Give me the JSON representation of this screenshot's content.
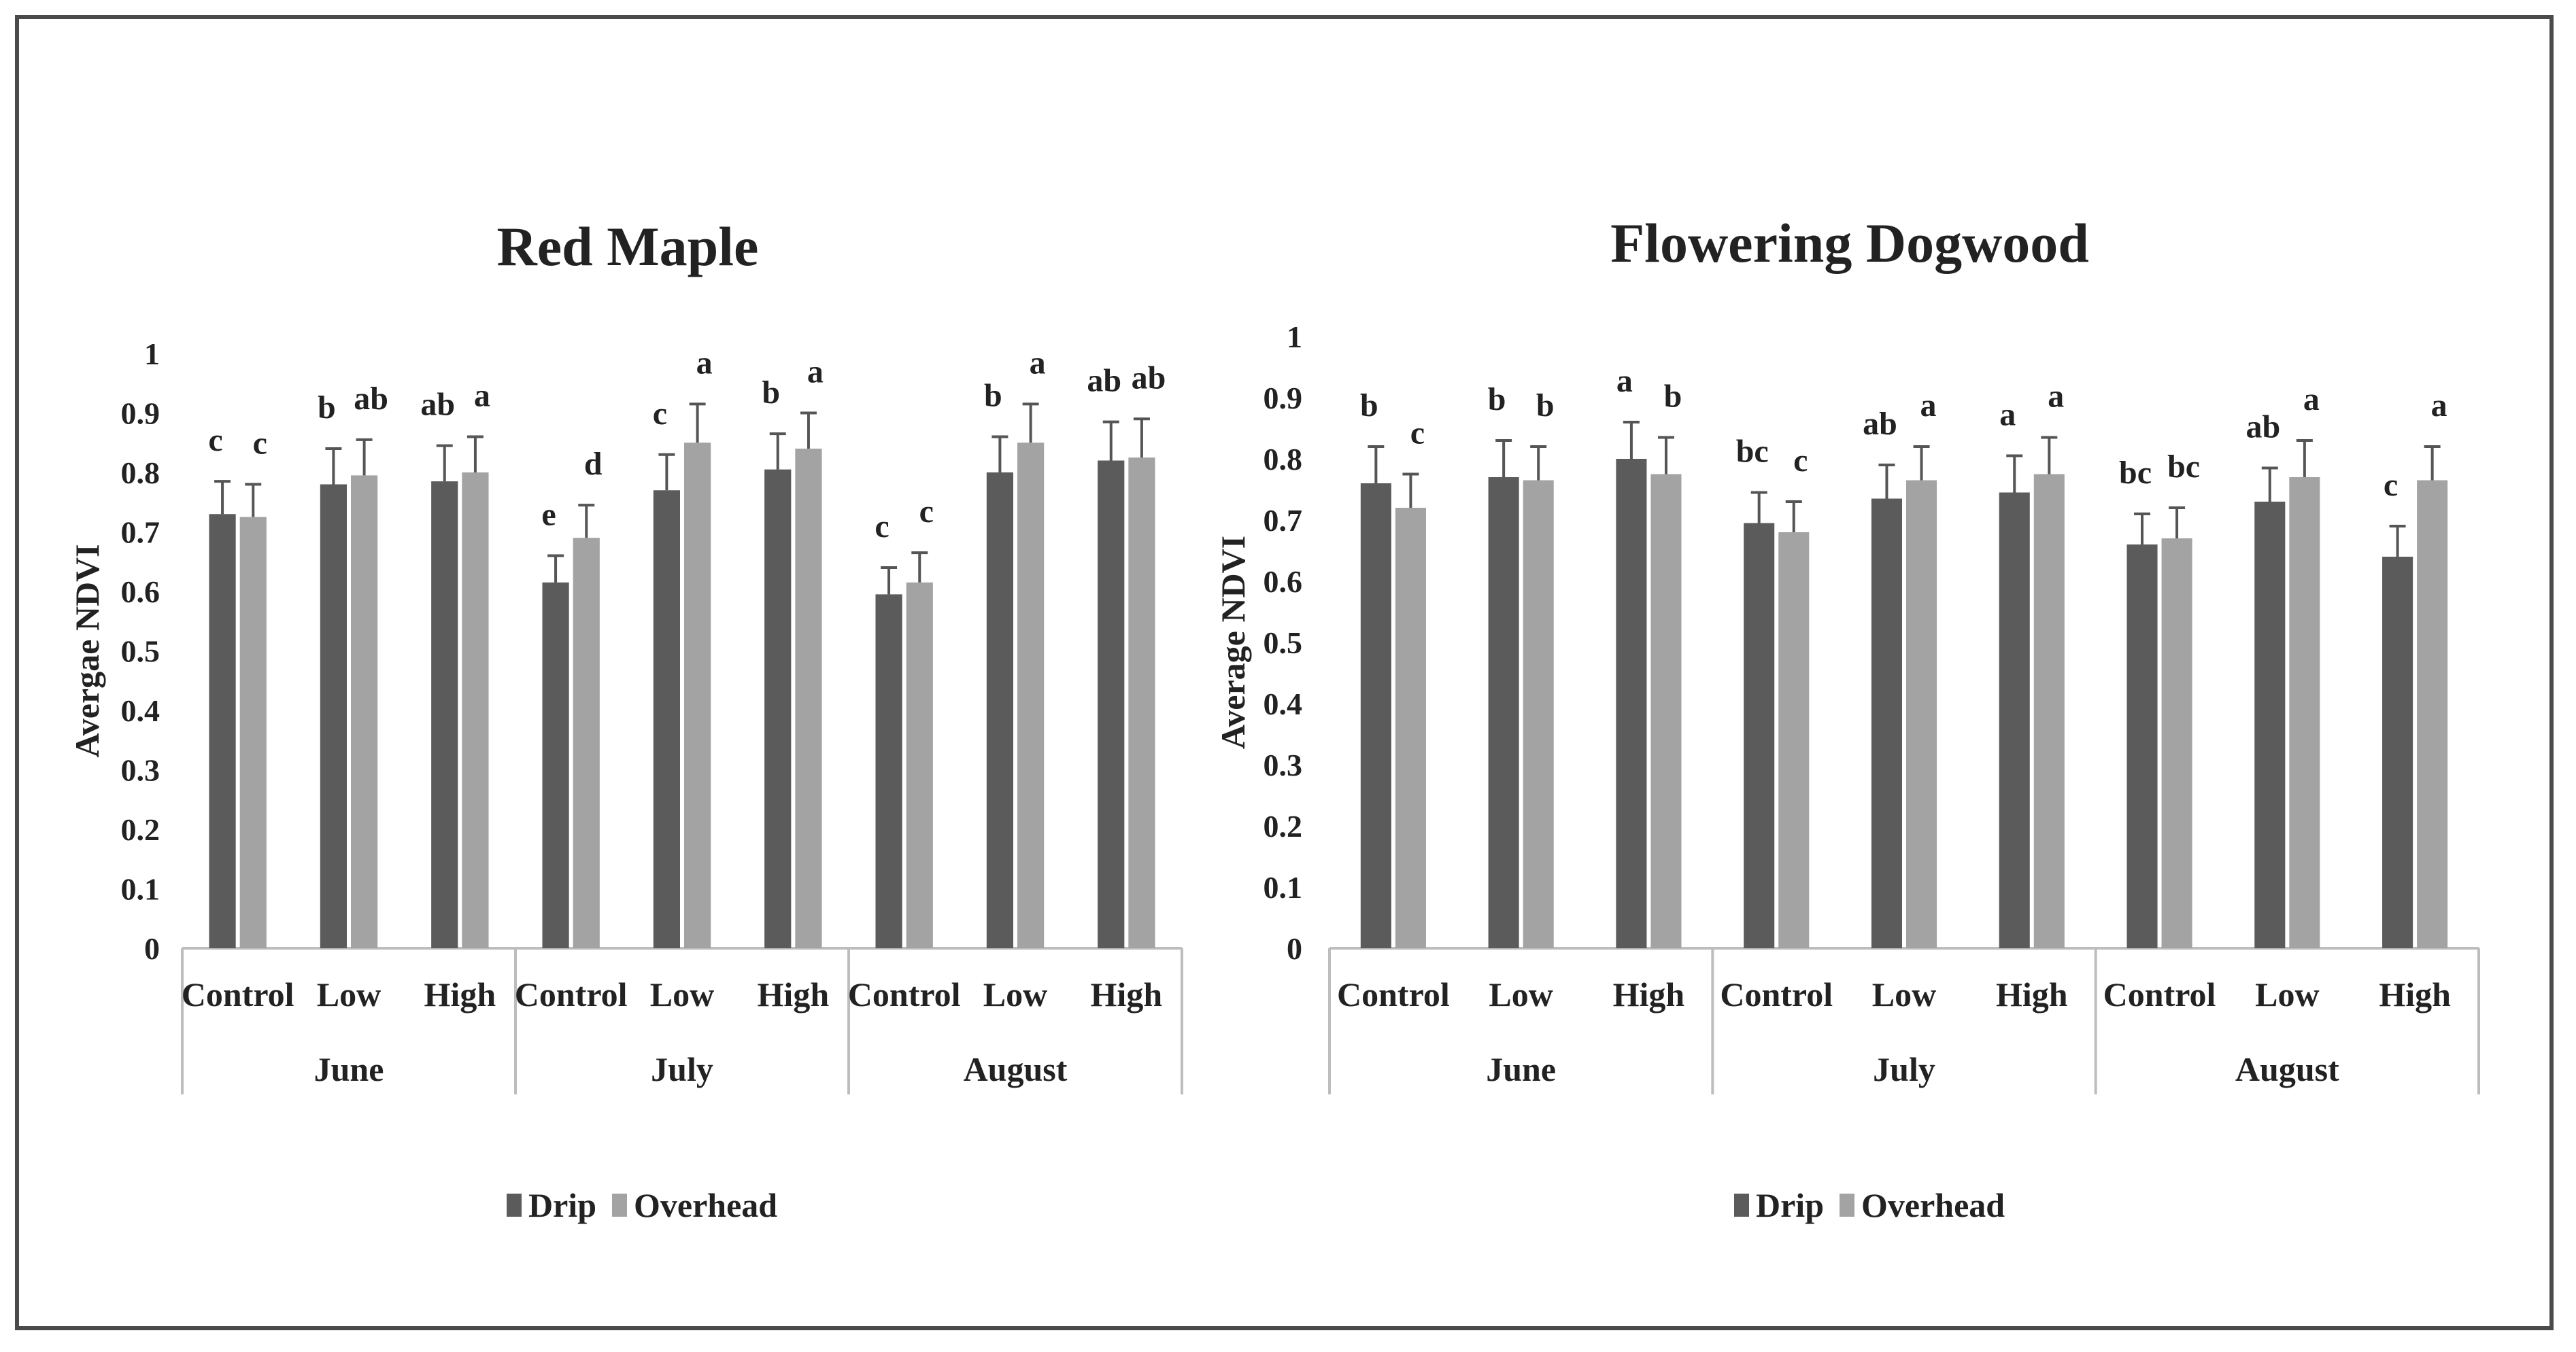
{
  "colors": {
    "drip": "#5b5b5b",
    "overhead": "#a3a3a3",
    "axis": "#bdbdbd",
    "error": "#555555",
    "frame": "#4a4a4a"
  },
  "chart_data": [
    {
      "type": "bar",
      "title": "Red Maple",
      "ylabel": "Avergae NDVI",
      "ylim": [
        0,
        1
      ],
      "yticks": [
        "0",
        "0.1",
        "0.2",
        "0.3",
        "0.4",
        "0.5",
        "0.6",
        "0.7",
        "0.8",
        "0.9",
        "1"
      ],
      "groups": [
        "June",
        "July",
        "August"
      ],
      "categories": [
        "Control",
        "Low",
        "High",
        "Control",
        "Low",
        "High",
        "Control",
        "Low",
        "High"
      ],
      "series": [
        {
          "name": "Drip",
          "values": [
            0.73,
            0.78,
            0.785,
            0.615,
            0.77,
            0.805,
            0.595,
            0.8,
            0.82
          ],
          "errors": [
            0.055,
            0.06,
            0.06,
            0.045,
            0.06,
            0.06,
            0.045,
            0.06,
            0.065
          ],
          "letters": [
            "c",
            "b",
            "ab",
            "e",
            "c",
            "b",
            "c",
            "b",
            "ab"
          ]
        },
        {
          "name": "Overhead",
          "values": [
            0.725,
            0.795,
            0.8,
            0.69,
            0.85,
            0.84,
            0.615,
            0.85,
            0.825
          ],
          "errors": [
            0.055,
            0.06,
            0.06,
            0.055,
            0.065,
            0.06,
            0.05,
            0.065,
            0.065
          ],
          "letters": [
            "c",
            "ab",
            "a",
            "d",
            "a",
            "a",
            "c",
            "a",
            "ab"
          ]
        }
      ],
      "legend": "bottom"
    },
    {
      "type": "bar",
      "title": "Flowering Dogwood",
      "ylabel": "Average NDVI",
      "ylim": [
        0,
        1
      ],
      "yticks": [
        "0",
        "0.1",
        "0.2",
        "0.3",
        "0.4",
        "0.5",
        "0.6",
        "0.7",
        "0.8",
        "0.9",
        "1"
      ],
      "groups": [
        "June",
        "July",
        "August"
      ],
      "categories": [
        "Control",
        "Low",
        "High",
        "Control",
        "Low",
        "High",
        "Control",
        "Low",
        "High"
      ],
      "series": [
        {
          "name": "Drip",
          "values": [
            0.76,
            0.77,
            0.8,
            0.695,
            0.735,
            0.745,
            0.66,
            0.73,
            0.64
          ],
          "errors": [
            0.06,
            0.06,
            0.06,
            0.05,
            0.055,
            0.06,
            0.05,
            0.055,
            0.05
          ],
          "letters": [
            "b",
            "b",
            "a",
            "bc",
            "ab",
            "a",
            "bc",
            "ab",
            "c"
          ]
        },
        {
          "name": "Overhead",
          "values": [
            0.72,
            0.765,
            0.775,
            0.68,
            0.765,
            0.775,
            0.67,
            0.77,
            0.765
          ],
          "errors": [
            0.055,
            0.055,
            0.06,
            0.05,
            0.055,
            0.06,
            0.05,
            0.06,
            0.055
          ],
          "letters": [
            "c",
            "b",
            "b",
            "c",
            "a",
            "a",
            "bc",
            "a",
            "a"
          ]
        }
      ],
      "legend": "bottom"
    }
  ]
}
